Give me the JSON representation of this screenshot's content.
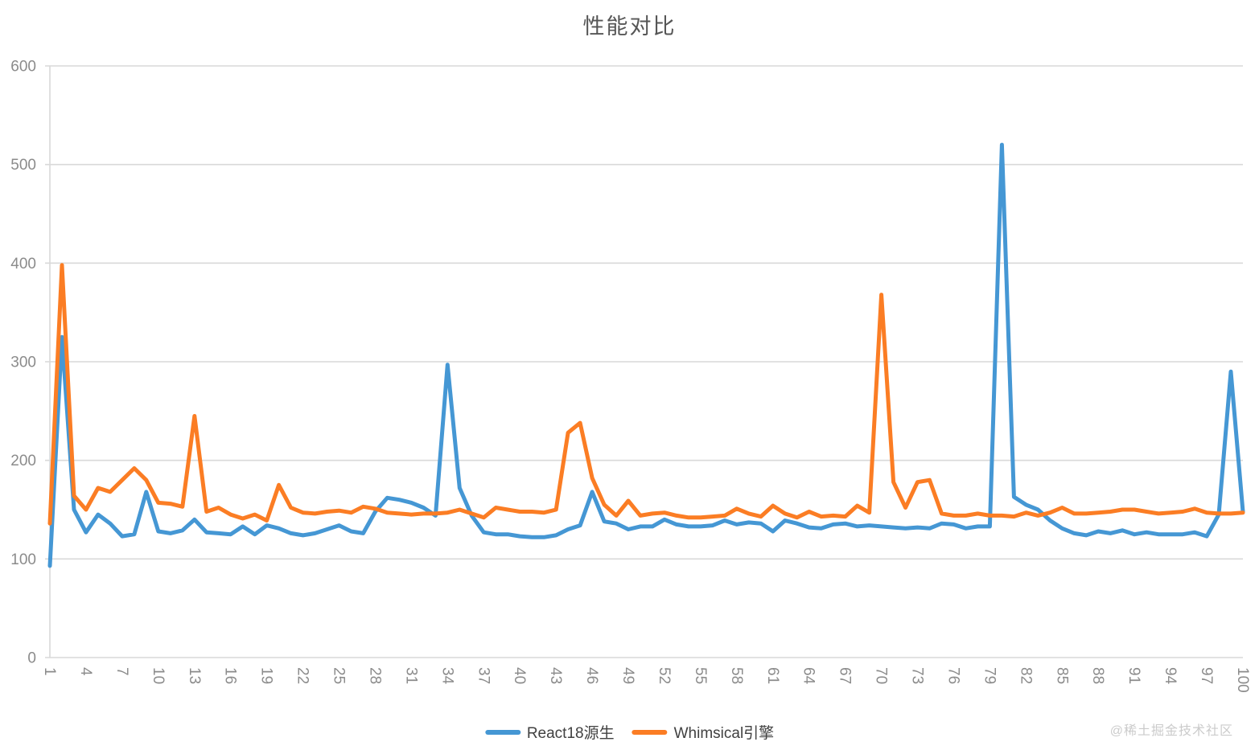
{
  "title": "性能对比",
  "watermark": "@稀土掘金技术社区",
  "colors": {
    "blue": "#4597D4",
    "orange": "#FB7D24",
    "grid": "#D9D9D9",
    "axis_text": "#8B8B8B",
    "title_text": "#565656",
    "legend_text": "#414141",
    "watermark_text": "#CBCBCB"
  },
  "chart_data": {
    "type": "line",
    "title": "性能对比",
    "xlabel": "",
    "ylabel": "",
    "ylim": [
      0,
      600
    ],
    "y_ticks": [
      0,
      100,
      200,
      300,
      400,
      500,
      600
    ],
    "grid": true,
    "legend_position": "bottom",
    "x": [
      1,
      2,
      3,
      4,
      5,
      6,
      7,
      8,
      9,
      10,
      11,
      12,
      13,
      14,
      15,
      16,
      17,
      18,
      19,
      20,
      21,
      22,
      23,
      24,
      25,
      26,
      27,
      28,
      29,
      30,
      31,
      32,
      33,
      34,
      35,
      36,
      37,
      38,
      39,
      40,
      41,
      42,
      43,
      44,
      45,
      46,
      47,
      48,
      49,
      50,
      51,
      52,
      53,
      54,
      55,
      56,
      57,
      58,
      59,
      60,
      61,
      62,
      63,
      64,
      65,
      66,
      67,
      68,
      69,
      70,
      71,
      72,
      73,
      74,
      75,
      76,
      77,
      78,
      79,
      80,
      81,
      82,
      83,
      84,
      85,
      86,
      87,
      88,
      89,
      90,
      91,
      92,
      93,
      94,
      95,
      96,
      97,
      98,
      99,
      100
    ],
    "x_tick_labels": [
      "1",
      "4",
      "7",
      "10",
      "13",
      "16",
      "19",
      "22",
      "25",
      "28",
      "31",
      "34",
      "37",
      "40",
      "43",
      "46",
      "49",
      "52",
      "55",
      "58",
      "61",
      "64",
      "67",
      "70",
      "73",
      "76",
      "79",
      "82",
      "85",
      "88",
      "91",
      "94",
      "97",
      "100"
    ],
    "x_tick_step": 3,
    "series": [
      {
        "name": "React18源生",
        "color": "#4597D4",
        "values": [
          93,
          325,
          150,
          127,
          145,
          136,
          123,
          125,
          168,
          128,
          126,
          129,
          140,
          127,
          126,
          125,
          133,
          125,
          134,
          131,
          126,
          124,
          126,
          130,
          134,
          128,
          126,
          148,
          162,
          160,
          157,
          152,
          144,
          297,
          172,
          144,
          127,
          125,
          125,
          123,
          122,
          122,
          124,
          130,
          134,
          168,
          138,
          136,
          130,
          133,
          133,
          140,
          135,
          133,
          133,
          134,
          139,
          135,
          137,
          136,
          128,
          139,
          136,
          132,
          131,
          135,
          136,
          133,
          134,
          133,
          132,
          131,
          132,
          131,
          136,
          135,
          131,
          133,
          133,
          520,
          163,
          155,
          150,
          139,
          131,
          126,
          124,
          128,
          126,
          129,
          125,
          127,
          125,
          125,
          125,
          127,
          123,
          145,
          290,
          148
        ]
      },
      {
        "name": "Whimsical引擎",
        "color": "#FB7D24",
        "values": [
          136,
          398,
          164,
          150,
          172,
          168,
          180,
          192,
          180,
          157,
          156,
          153,
          245,
          148,
          152,
          145,
          141,
          145,
          139,
          175,
          152,
          147,
          146,
          148,
          149,
          147,
          153,
          151,
          147,
          146,
          145,
          146,
          146,
          147,
          150,
          146,
          142,
          152,
          150,
          148,
          148,
          147,
          150,
          228,
          238,
          182,
          155,
          144,
          159,
          144,
          146,
          147,
          144,
          142,
          142,
          143,
          144,
          151,
          146,
          143,
          154,
          146,
          142,
          148,
          143,
          144,
          143,
          154,
          147,
          368,
          178,
          152,
          178,
          180,
          146,
          144,
          144,
          146,
          144,
          144,
          143,
          147,
          144,
          147,
          152,
          146,
          146,
          147,
          148,
          150,
          150,
          148,
          146,
          147,
          148,
          151,
          147,
          146,
          146,
          147
        ]
      }
    ]
  }
}
